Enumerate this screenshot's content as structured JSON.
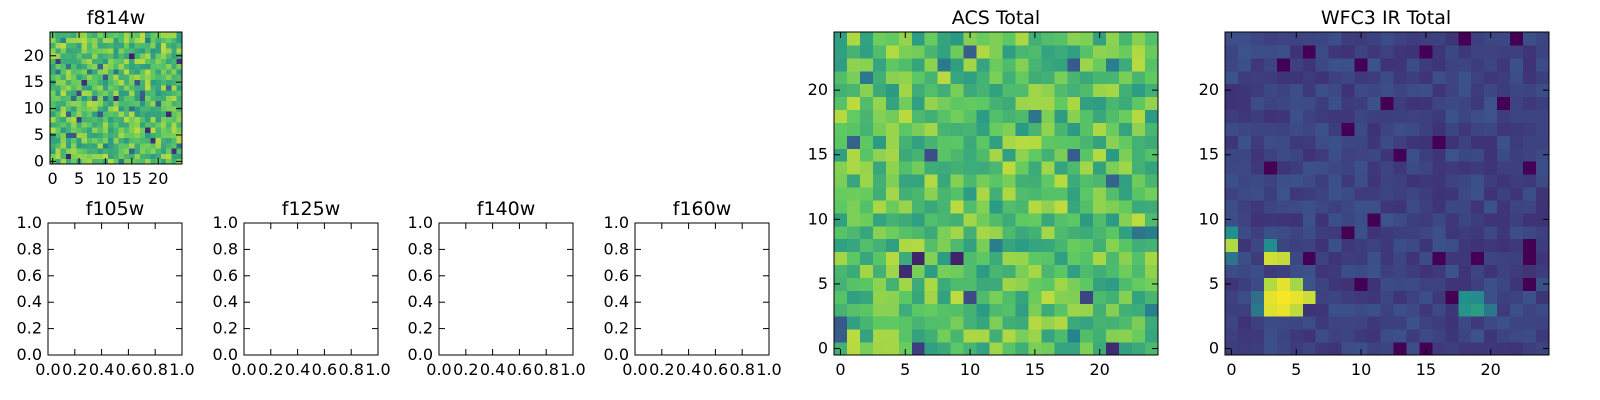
{
  "chart_data": [
    {
      "type": "heatmap",
      "id": "f814w",
      "title": "f814w",
      "extent": [
        -0.5,
        24.5,
        -0.5,
        24.5
      ],
      "xticks": [
        0,
        5,
        10,
        15,
        20
      ],
      "yticks": [
        0,
        5,
        10,
        15,
        20
      ],
      "xtick_labels": [
        "0",
        "5",
        "10",
        "15",
        "20"
      ],
      "ytick_labels": [
        "0",
        "5",
        "10",
        "15",
        "20"
      ],
      "colormap": "viridis",
      "value_range": [
        0,
        1
      ],
      "grid_size": 25,
      "data_generator": "seeded-random-noise",
      "seed": 814,
      "mean": 0.72,
      "spread": 0.18
    },
    {
      "type": "empty-axes",
      "id": "f105w",
      "title": "f105w",
      "xlim": [
        0,
        1
      ],
      "ylim": [
        0,
        1
      ],
      "xticks": [
        0,
        0.2,
        0.4,
        0.6,
        0.8,
        1.0
      ],
      "yticks": [
        0,
        0.2,
        0.4,
        0.6,
        0.8,
        1.0
      ],
      "xtick_labels": [
        "0.0",
        "0.2",
        "0.4",
        "0.6",
        "0.8",
        "1.0"
      ],
      "ytick_labels": [
        "0.0",
        "0.2",
        "0.4",
        "0.6",
        "0.8",
        "1.0"
      ]
    },
    {
      "type": "empty-axes",
      "id": "f125w",
      "title": "f125w",
      "xlim": [
        0,
        1
      ],
      "ylim": [
        0,
        1
      ],
      "xticks": [
        0,
        0.2,
        0.4,
        0.6,
        0.8,
        1.0
      ],
      "yticks": [
        0,
        0.2,
        0.4,
        0.6,
        0.8,
        1.0
      ],
      "xtick_labels": [
        "0.0",
        "0.2",
        "0.4",
        "0.6",
        "0.8",
        "1.0"
      ],
      "ytick_labels": [
        "0.0",
        "0.2",
        "0.4",
        "0.6",
        "0.8",
        "1.0"
      ]
    },
    {
      "type": "empty-axes",
      "id": "f140w",
      "title": "f140w",
      "xlim": [
        0,
        1
      ],
      "ylim": [
        0,
        1
      ],
      "xticks": [
        0,
        0.2,
        0.4,
        0.6,
        0.8,
        1.0
      ],
      "yticks": [
        0,
        0.2,
        0.4,
        0.6,
        0.8,
        1.0
      ],
      "xtick_labels": [
        "0.0",
        "0.2",
        "0.4",
        "0.6",
        "0.8",
        "1.0"
      ],
      "ytick_labels": [
        "0.0",
        "0.2",
        "0.4",
        "0.6",
        "0.8",
        "1.0"
      ]
    },
    {
      "type": "empty-axes",
      "id": "f160w",
      "title": "f160w",
      "xlim": [
        0,
        1
      ],
      "ylim": [
        0,
        1
      ],
      "xticks": [
        0,
        0.2,
        0.4,
        0.6,
        0.8,
        1.0
      ],
      "yticks": [
        0,
        0.2,
        0.4,
        0.6,
        0.8,
        1.0
      ],
      "xtick_labels": [
        "0.0",
        "0.2",
        "0.4",
        "0.6",
        "0.8",
        "1.0"
      ],
      "ytick_labels": [
        "0.0",
        "0.2",
        "0.4",
        "0.6",
        "0.8",
        "1.0"
      ]
    },
    {
      "type": "heatmap",
      "id": "acs-total",
      "title": "ACS Total",
      "extent": [
        -0.5,
        24.5,
        -0.5,
        24.5
      ],
      "xticks": [
        0,
        5,
        10,
        15,
        20
      ],
      "yticks": [
        0,
        5,
        10,
        15,
        20
      ],
      "xtick_labels": [
        "0",
        "5",
        "10",
        "15",
        "20"
      ],
      "ytick_labels": [
        "0",
        "5",
        "10",
        "15",
        "20"
      ],
      "colormap": "viridis",
      "value_range": [
        0,
        1
      ],
      "grid_size": 25,
      "data_generator": "seeded-random-noise",
      "seed": 101,
      "mean": 0.72,
      "spread": 0.18
    },
    {
      "type": "heatmap",
      "id": "wfc3-ir-total",
      "title": "WFC3 IR Total",
      "extent": [
        -0.5,
        24.5,
        -0.5,
        24.5
      ],
      "xticks": [
        0,
        5,
        10,
        15,
        20
      ],
      "yticks": [
        0,
        5,
        10,
        15,
        20
      ],
      "xtick_labels": [
        "0",
        "5",
        "10",
        "15",
        "20"
      ],
      "ytick_labels": [
        "0",
        "5",
        "10",
        "15",
        "20"
      ],
      "colormap": "viridis",
      "value_range": [
        0,
        1
      ],
      "grid_size": 25,
      "data_generator": "seeded-random-noise",
      "seed": 303,
      "mean": 0.2,
      "spread": 0.05,
      "bright_cells": [
        {
          "x": 3,
          "y": 3,
          "value": 0.95
        },
        {
          "x": 4,
          "y": 3,
          "value": 0.97
        },
        {
          "x": 5,
          "y": 3,
          "value": 0.9
        },
        {
          "x": 3,
          "y": 4,
          "value": 0.96
        },
        {
          "x": 4,
          "y": 4,
          "value": 0.99
        },
        {
          "x": 5,
          "y": 4,
          "value": 0.97
        },
        {
          "x": 6,
          "y": 4,
          "value": 0.92
        },
        {
          "x": 3,
          "y": 5,
          "value": 0.88
        },
        {
          "x": 4,
          "y": 5,
          "value": 0.96
        },
        {
          "x": 5,
          "y": 5,
          "value": 0.86
        },
        {
          "x": 3,
          "y": 7,
          "value": 0.93
        },
        {
          "x": 4,
          "y": 7,
          "value": 0.91
        },
        {
          "x": 3,
          "y": 8,
          "value": 0.48
        },
        {
          "x": 0,
          "y": 8,
          "value": 0.88
        },
        {
          "x": 0,
          "y": 9,
          "value": 0.5
        },
        {
          "x": 0,
          "y": 7,
          "value": 0.38
        },
        {
          "x": 18,
          "y": 3,
          "value": 0.52
        },
        {
          "x": 19,
          "y": 3,
          "value": 0.55
        },
        {
          "x": 18,
          "y": 4,
          "value": 0.5
        },
        {
          "x": 19,
          "y": 4,
          "value": 0.48
        },
        {
          "x": 20,
          "y": 3,
          "value": 0.4
        },
        {
          "x": 2,
          "y": 3,
          "value": 0.4
        },
        {
          "x": 2,
          "y": 4,
          "value": 0.36
        }
      ]
    }
  ]
}
